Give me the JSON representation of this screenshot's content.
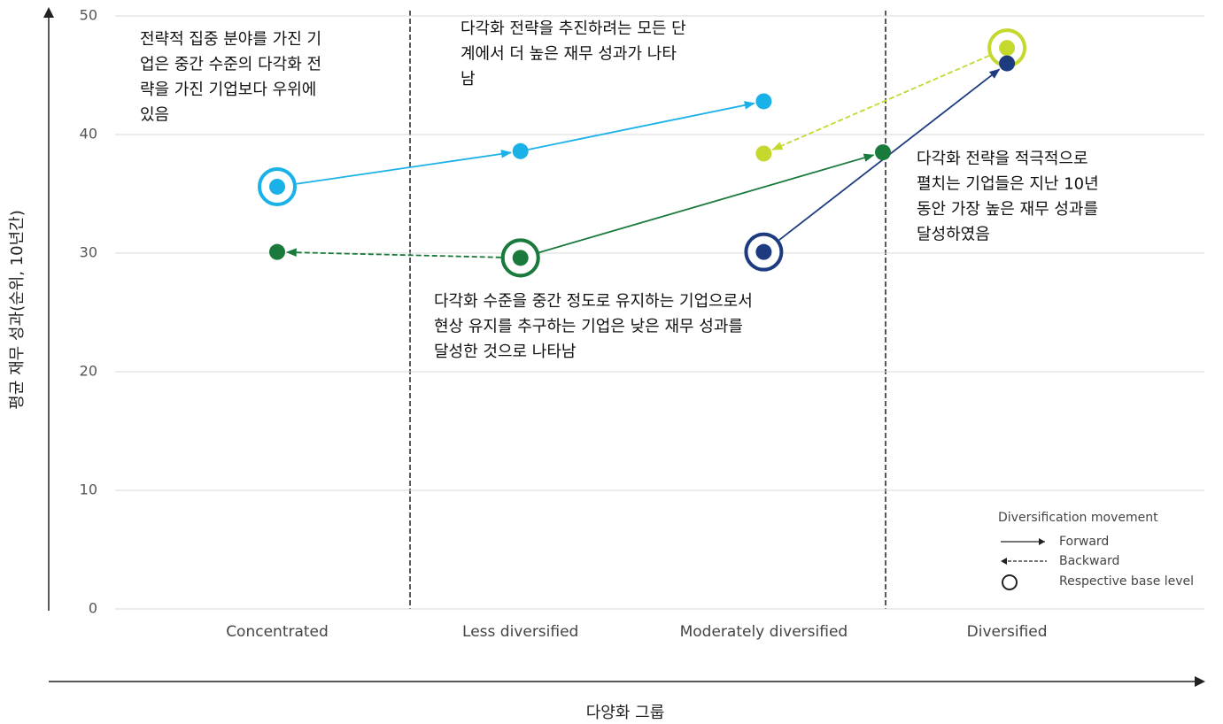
{
  "chart_data": {
    "type": "movement",
    "y_label": "평균 재무 성과(순위, 10년간)",
    "x_label": "다양화 그룹",
    "categories": [
      "Concentrated",
      "Less diversified",
      "Moderately diversified",
      "Diversified"
    ],
    "ylim": [
      0,
      50
    ],
    "yticks": [
      0,
      10,
      20,
      30,
      40,
      50
    ],
    "grid": true,
    "series": [
      {
        "color": "#1ab0e8",
        "direction": "forward",
        "x": [
          0,
          1,
          2
        ],
        "values": [
          35.6,
          38.6,
          42.8
        ]
      },
      {
        "color": "#c5d82e",
        "direction": "backward",
        "x": [
          3,
          2
        ],
        "values": [
          47.3,
          38.4
        ]
      },
      {
        "color": "#1a7a3c",
        "direction": "backward",
        "x": [
          1,
          0
        ],
        "values": [
          29.6,
          30.1
        ]
      },
      {
        "color": "#1a7a3c",
        "direction": "forward",
        "x": [
          1,
          2.49
        ],
        "values": [
          29.6,
          38.5
        ]
      },
      {
        "color": "#1d3c80",
        "direction": "forward",
        "x": [
          2,
          3
        ],
        "values": [
          30.1,
          46.0
        ]
      }
    ],
    "annotations": [
      {
        "lines": [
          "전략적 집중 분야를 가진 기",
          "업은 중간 수준의 다각화 전",
          "략을 가진 기업보다 우위에",
          "있음"
        ]
      },
      {
        "lines": [
          "다각화 전략을 추진하려는 모든 단",
          "계에서 더 높은 재무 성과가 나타",
          "남"
        ]
      },
      {
        "lines": [
          "다각화 전략을 적극적으로",
          "펼치는 기업들은 지난 10년",
          "동안 가장 높은 재무 성과를",
          "달성하였음"
        ]
      },
      {
        "lines": [
          "다각화 수준을 중간 정도로 유지하는 기업으로서",
          "현상 유지를 추구하는 기업은 낮은 재무 성과를",
          "달성한 것으로 나타남"
        ]
      }
    ],
    "legend": {
      "title": "Diversification movement",
      "forward": "Forward",
      "backward": "Backward",
      "base": "Respective base level"
    }
  }
}
